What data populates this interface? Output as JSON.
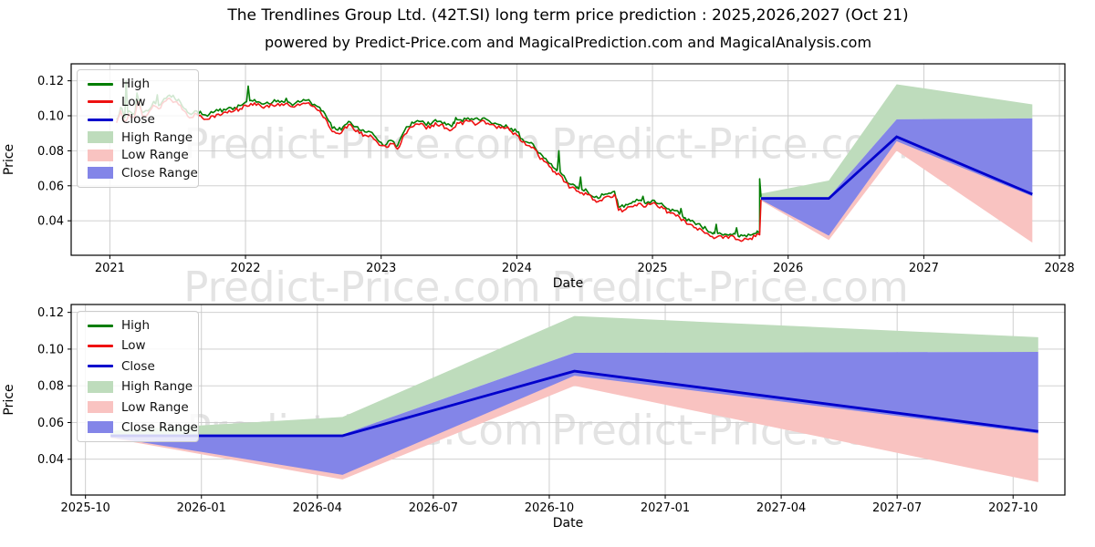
{
  "header": {
    "title": "The Trendlines Group Ltd. (42T.SI) long term price prediction : 2025,2026,2027 (Oct 21)",
    "subtitle": "powered by Predict-Price.com and MagicalPrediction.com and MagicalAnalysis.com"
  },
  "watermark": {
    "text": "Predict-Price.com",
    "color": "#e3e3e3"
  },
  "colors": {
    "high": "#007d00",
    "low": "#ee1111",
    "close": "#0000cc",
    "high_range": "#bedcbc",
    "low_range": "#f9c3c1",
    "close_range": "#8385e8",
    "grid": "#c9c9c9",
    "axis": "#000000"
  },
  "legend": {
    "entries": [
      {
        "label": "High",
        "swatch": "line",
        "color": "#007d00"
      },
      {
        "label": "Low",
        "swatch": "line",
        "color": "#ee1111"
      },
      {
        "label": "Close",
        "swatch": "line",
        "color": "#0000cc"
      },
      {
        "label": "High Range",
        "swatch": "patch",
        "color": "#bedcbc"
      },
      {
        "label": "Low Range",
        "swatch": "patch",
        "color": "#f9c3c1"
      },
      {
        "label": "Close Range",
        "swatch": "patch",
        "color": "#8385e8"
      }
    ]
  },
  "chart_data": [
    {
      "type": "line",
      "xlabel": "Date",
      "ylabel": "Price",
      "xlim": [
        2020.715,
        2028.04
      ],
      "ylim": [
        0.0203,
        0.1297
      ],
      "xticks": [
        {
          "v": 2021,
          "label": "2021"
        },
        {
          "v": 2022,
          "label": "2022"
        },
        {
          "v": 2023,
          "label": "2023"
        },
        {
          "v": 2024,
          "label": "2024"
        },
        {
          "v": 2025,
          "label": "2025"
        },
        {
          "v": 2026,
          "label": "2026"
        },
        {
          "v": 2027,
          "label": "2027"
        },
        {
          "v": 2028,
          "label": "2028"
        }
      ],
      "yticks": [
        {
          "v": 0.04,
          "label": "0.04"
        },
        {
          "v": 0.06,
          "label": "0.06"
        },
        {
          "v": 0.08,
          "label": "0.08"
        },
        {
          "v": 0.1,
          "label": "0.10"
        },
        {
          "v": 0.12,
          "label": "0.12"
        }
      ],
      "history": {
        "jitter": 0.0013,
        "high_offset": 0.0018,
        "low": [
          [
            2021.05,
            0.096
          ],
          [
            2021.08,
            0.103
          ],
          [
            2021.11,
            0.097
          ],
          [
            2021.14,
            0.101
          ],
          [
            2021.18,
            0.099
          ],
          [
            2021.21,
            0.108
          ],
          [
            2021.24,
            0.1
          ],
          [
            2021.28,
            0.101
          ],
          [
            2021.32,
            0.106
          ],
          [
            2021.36,
            0.104
          ],
          [
            2021.4,
            0.108
          ],
          [
            2021.44,
            0.11
          ],
          [
            2021.48,
            0.108
          ],
          [
            2021.52,
            0.106
          ],
          [
            2021.56,
            0.102
          ],
          [
            2021.6,
            0.099
          ],
          [
            2021.64,
            0.101
          ],
          [
            2021.68,
            0.099
          ],
          [
            2021.72,
            0.098
          ],
          [
            2021.76,
            0.1
          ],
          [
            2021.8,
            0.101
          ],
          [
            2021.84,
            0.102
          ],
          [
            2021.88,
            0.103
          ],
          [
            2021.92,
            0.103
          ],
          [
            2021.96,
            0.104
          ],
          [
            2022.0,
            0.106
          ],
          [
            2022.04,
            0.107
          ],
          [
            2022.08,
            0.106
          ],
          [
            2022.12,
            0.105
          ],
          [
            2022.16,
            0.106
          ],
          [
            2022.2,
            0.106
          ],
          [
            2022.24,
            0.107
          ],
          [
            2022.28,
            0.106
          ],
          [
            2022.32,
            0.106
          ],
          [
            2022.36,
            0.105
          ],
          [
            2022.4,
            0.106
          ],
          [
            2022.44,
            0.107
          ],
          [
            2022.48,
            0.106
          ],
          [
            2022.52,
            0.104
          ],
          [
            2022.56,
            0.101
          ],
          [
            2022.6,
            0.097
          ],
          [
            2022.64,
            0.091
          ],
          [
            2022.68,
            0.09
          ],
          [
            2022.72,
            0.092
          ],
          [
            2022.76,
            0.095
          ],
          [
            2022.8,
            0.092
          ],
          [
            2022.84,
            0.09
          ],
          [
            2022.88,
            0.089
          ],
          [
            2022.92,
            0.089
          ],
          [
            2022.96,
            0.086
          ],
          [
            2023.0,
            0.083
          ],
          [
            2023.04,
            0.082
          ],
          [
            2023.08,
            0.084
          ],
          [
            2023.12,
            0.081
          ],
          [
            2023.16,
            0.088
          ],
          [
            2023.2,
            0.092
          ],
          [
            2023.24,
            0.094
          ],
          [
            2023.28,
            0.095
          ],
          [
            2023.32,
            0.094
          ],
          [
            2023.36,
            0.093
          ],
          [
            2023.4,
            0.096
          ],
          [
            2023.44,
            0.095
          ],
          [
            2023.48,
            0.093
          ],
          [
            2023.52,
            0.092
          ],
          [
            2023.56,
            0.096
          ],
          [
            2023.6,
            0.095
          ],
          [
            2023.64,
            0.097
          ],
          [
            2023.68,
            0.096
          ],
          [
            2023.72,
            0.096
          ],
          [
            2023.76,
            0.097
          ],
          [
            2023.8,
            0.095
          ],
          [
            2023.84,
            0.094
          ],
          [
            2023.88,
            0.093
          ],
          [
            2023.92,
            0.093
          ],
          [
            2023.96,
            0.091
          ],
          [
            2024.0,
            0.089
          ],
          [
            2024.04,
            0.085
          ],
          [
            2024.08,
            0.083
          ],
          [
            2024.12,
            0.082
          ],
          [
            2024.16,
            0.077
          ],
          [
            2024.2,
            0.074
          ],
          [
            2024.24,
            0.071
          ],
          [
            2024.28,
            0.068
          ],
          [
            2024.32,
            0.066
          ],
          [
            2024.36,
            0.062
          ],
          [
            2024.4,
            0.059
          ],
          [
            2024.44,
            0.057
          ],
          [
            2024.48,
            0.056
          ],
          [
            2024.52,
            0.055
          ],
          [
            2024.56,
            0.052
          ],
          [
            2024.6,
            0.051
          ],
          [
            2024.64,
            0.053
          ],
          [
            2024.68,
            0.054
          ],
          [
            2024.72,
            0.055
          ],
          [
            2024.75,
            0.046
          ],
          [
            2024.79,
            0.046
          ],
          [
            2024.83,
            0.048
          ],
          [
            2024.87,
            0.049
          ],
          [
            2024.91,
            0.05
          ],
          [
            2024.95,
            0.048
          ],
          [
            2025.0,
            0.05
          ],
          [
            2025.04,
            0.048
          ],
          [
            2025.08,
            0.047
          ],
          [
            2025.12,
            0.045
          ],
          [
            2025.16,
            0.044
          ],
          [
            2025.2,
            0.042
          ],
          [
            2025.24,
            0.04
          ],
          [
            2025.28,
            0.038
          ],
          [
            2025.32,
            0.036
          ],
          [
            2025.36,
            0.035
          ],
          [
            2025.4,
            0.033
          ],
          [
            2025.44,
            0.031
          ],
          [
            2025.48,
            0.031
          ],
          [
            2025.52,
            0.03
          ],
          [
            2025.56,
            0.03
          ],
          [
            2025.6,
            0.031
          ],
          [
            2025.64,
            0.029
          ],
          [
            2025.68,
            0.03
          ],
          [
            2025.72,
            0.03
          ],
          [
            2025.76,
            0.031
          ],
          [
            2025.79,
            0.032
          ],
          [
            2025.8,
            0.052
          ]
        ],
        "high_spikes": [
          [
            2021.12,
            0.12
          ],
          [
            2021.2,
            0.113
          ],
          [
            2021.35,
            0.112
          ],
          [
            2022.02,
            0.117
          ],
          [
            2022.3,
            0.11
          ],
          [
            2023.55,
            0.099
          ],
          [
            2024.31,
            0.08
          ],
          [
            2024.47,
            0.065
          ],
          [
            2024.93,
            0.054
          ],
          [
            2025.21,
            0.047
          ],
          [
            2025.47,
            0.038
          ],
          [
            2025.62,
            0.036
          ],
          [
            2025.79,
            0.064
          ]
        ]
      },
      "forecast": {
        "x": [
          2025.8,
          2026.3,
          2026.8,
          2027.8
        ],
        "x_dates": [
          "2025-10-21",
          "2026-04-21",
          "2026-10-21",
          "2027-10-21"
        ],
        "close": [
          0.0528,
          0.0528,
          0.088,
          0.0552
        ],
        "high_range_upper": [
          0.0555,
          0.063,
          0.118,
          0.1065
        ],
        "high_range_lower": [
          0.0532,
          0.0535,
          0.098,
          0.0985
        ],
        "close_range_upper": [
          0.0535,
          0.0535,
          0.098,
          0.0985
        ],
        "close_range_lower": [
          0.052,
          0.0315,
          0.0855,
          0.054
        ],
        "low_range_upper": [
          0.0525,
          0.0525,
          0.0865,
          0.0545
        ],
        "low_range_lower": [
          0.0515,
          0.029,
          0.08,
          0.0275
        ]
      }
    },
    {
      "type": "line",
      "xlabel": "Date",
      "ylabel": "Price",
      "xlim": [
        -0.37,
        25.34
      ],
      "ylim": [
        0.0205,
        0.1243
      ],
      "xticks": [
        {
          "v": 0,
          "label": "2025-10"
        },
        {
          "v": 3,
          "label": "2026-01"
        },
        {
          "v": 6,
          "label": "2026-04"
        },
        {
          "v": 9,
          "label": "2026-07"
        },
        {
          "v": 12,
          "label": "2026-10"
        },
        {
          "v": 15,
          "label": "2027-01"
        },
        {
          "v": 18,
          "label": "2027-04"
        },
        {
          "v": 21,
          "label": "2027-07"
        },
        {
          "v": 24,
          "label": "2027-10"
        }
      ],
      "yticks": [
        {
          "v": 0.04,
          "label": "0.04"
        },
        {
          "v": 0.06,
          "label": "0.06"
        },
        {
          "v": 0.08,
          "label": "0.08"
        },
        {
          "v": 0.1,
          "label": "0.10"
        },
        {
          "v": 0.12,
          "label": "0.12"
        }
      ],
      "forecast": {
        "x": [
          0.65,
          6.65,
          12.65,
          24.65
        ],
        "x_dates": [
          "2025-10-21",
          "2026-04-21",
          "2026-10-21",
          "2027-10-21"
        ],
        "close": [
          0.0528,
          0.0528,
          0.088,
          0.0552
        ],
        "high_range_upper": [
          0.0555,
          0.063,
          0.118,
          0.1065
        ],
        "high_range_lower": [
          0.0532,
          0.0535,
          0.098,
          0.0985
        ],
        "close_range_upper": [
          0.0535,
          0.0535,
          0.098,
          0.0985
        ],
        "close_range_lower": [
          0.052,
          0.0315,
          0.0855,
          0.054
        ],
        "low_range_upper": [
          0.0525,
          0.0525,
          0.0865,
          0.0545
        ],
        "low_range_lower": [
          0.0515,
          0.029,
          0.08,
          0.0275
        ]
      }
    }
  ]
}
